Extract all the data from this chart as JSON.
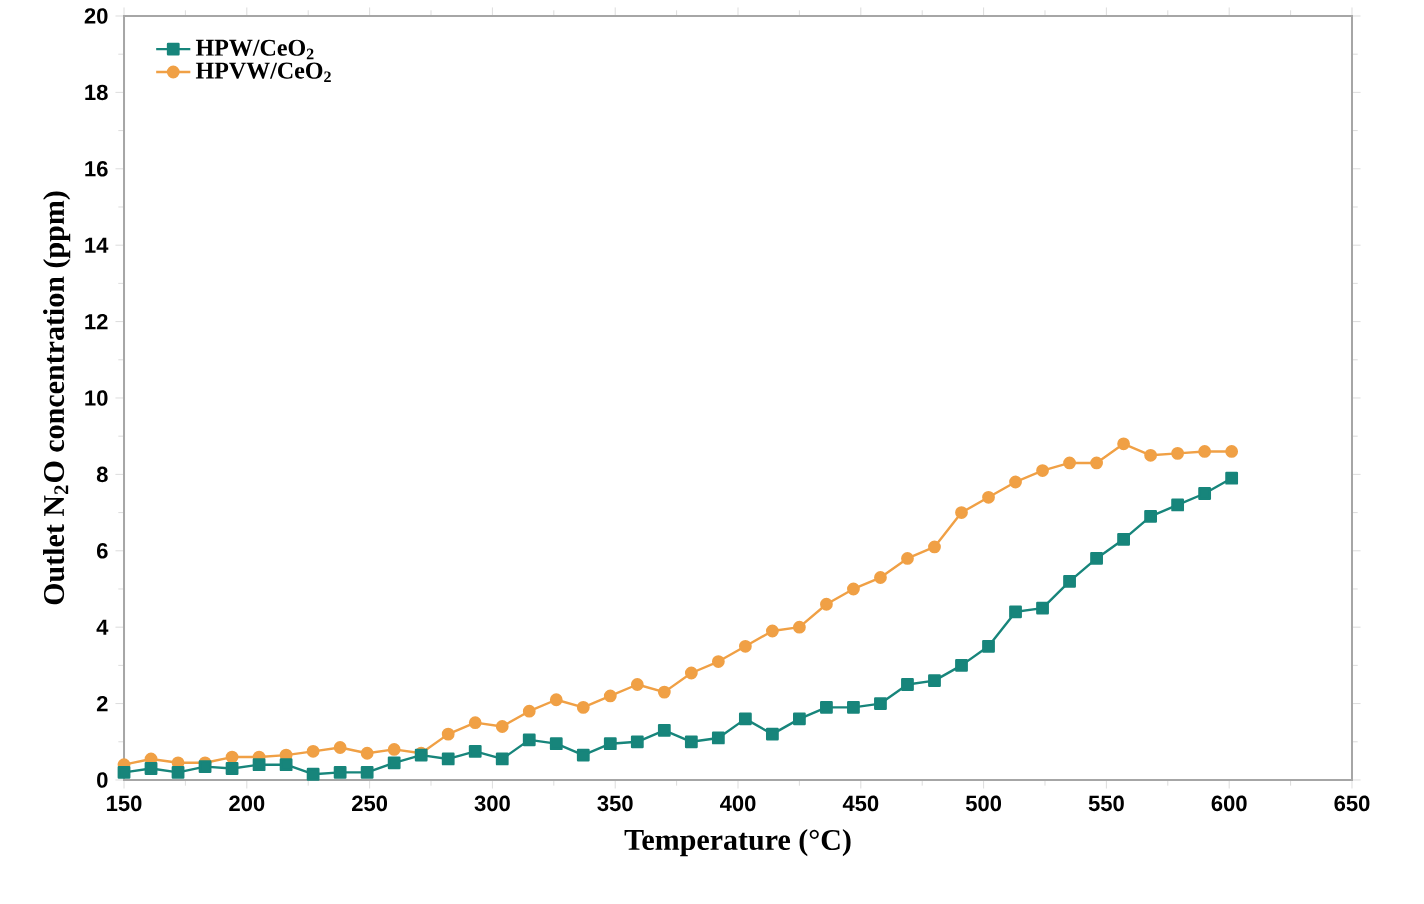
{
  "chart_data": {
    "type": "line",
    "xlabel": "Temperature (°C)",
    "ylabel": "Outlet N$_{2}$O concentration (ppm)",
    "xlim": [
      150,
      650
    ],
    "ylim": [
      0,
      20
    ],
    "xticks": [
      150,
      200,
      250,
      300,
      350,
      400,
      450,
      500,
      550,
      600,
      650
    ],
    "yticks": [
      0,
      2,
      4,
      6,
      8,
      10,
      12,
      14,
      16,
      18,
      20
    ],
    "grid": false,
    "legend": "top left",
    "x": [
      150,
      161,
      172,
      183,
      194,
      205,
      216,
      227,
      238,
      249,
      260,
      271,
      282,
      293,
      304,
      315,
      326,
      337,
      348,
      359,
      370,
      381,
      392,
      403,
      414,
      425,
      436,
      447,
      458,
      469,
      480,
      491,
      502,
      513,
      524,
      535,
      546,
      557,
      568,
      579,
      590,
      601
    ],
    "series": [
      {
        "name": "HPW/CeO$_{2}$",
        "color": "#17857b",
        "marker": "square",
        "values": [
          0.2,
          0.3,
          0.2,
          0.35,
          0.3,
          0.4,
          0.4,
          0.15,
          0.2,
          0.2,
          0.45,
          0.65,
          0.55,
          0.75,
          0.55,
          1.05,
          0.95,
          0.65,
          0.95,
          1.0,
          1.3,
          1.0,
          1.1,
          1.6,
          1.2,
          1.6,
          1.9,
          1.9,
          2.0,
          2.5,
          2.6,
          3.0,
          3.5,
          4.4,
          4.5,
          5.2,
          5.8,
          6.3,
          6.9,
          7.2,
          7.5,
          7.9
        ]
      },
      {
        "name": "HPVW/CeO$_{2}$",
        "color": "#f0a045",
        "marker": "circle",
        "values": [
          0.4,
          0.55,
          0.45,
          0.45,
          0.6,
          0.6,
          0.65,
          0.75,
          0.85,
          0.7,
          0.8,
          0.7,
          1.2,
          1.5,
          1.4,
          1.8,
          2.1,
          1.9,
          2.2,
          2.5,
          2.3,
          2.8,
          3.1,
          3.5,
          3.9,
          4.0,
          4.6,
          5.0,
          5.3,
          5.8,
          6.1,
          7.0,
          7.4,
          7.8,
          8.1,
          8.3,
          8.3,
          8.8,
          8.5,
          8.55,
          8.6,
          8.6
        ]
      }
    ]
  }
}
